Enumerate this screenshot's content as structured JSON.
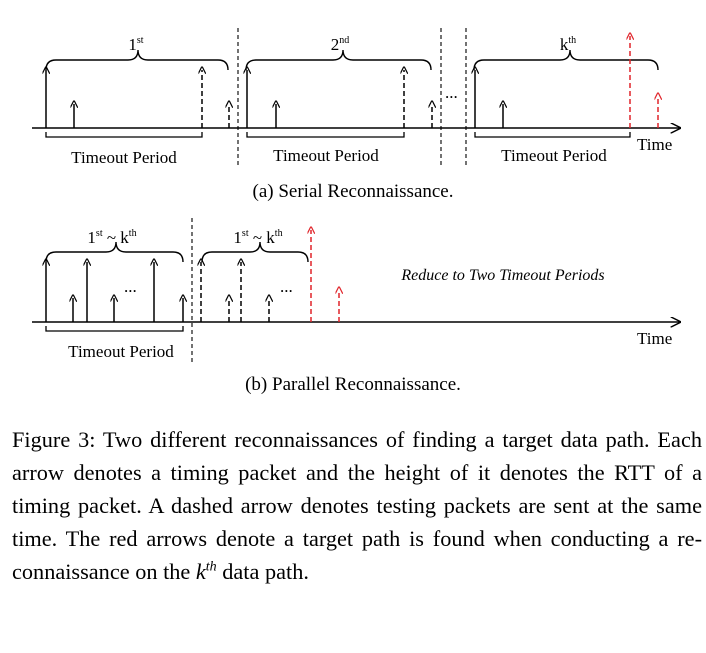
{
  "panel_a": {
    "brace_labels": [
      {
        "base": "1",
        "sup": "st"
      },
      {
        "base": "2",
        "sup": "nd"
      },
      {
        "base": "k",
        "sup": "th"
      }
    ],
    "ellipsis": "...",
    "period_labels": [
      "Timeout Period",
      "Timeout Period",
      "Timeout Period"
    ],
    "axis_label": "Time",
    "subtitle": "(a) Serial Reconnaissance."
  },
  "panel_b": {
    "brace_labels": [
      {
        "base1": "1",
        "sup1": "st",
        "tilde": "~",
        "base2": "k",
        "sup2": "th"
      },
      {
        "base1": "1",
        "sup1": "st",
        "tilde": "~",
        "base2": "k",
        "sup2": "th"
      }
    ],
    "ellipsis": "...",
    "note": "Reduce to Two Timeout Periods",
    "period_label": "Timeout Period",
    "axis_label": "Time",
    "subtitle": "(b) Parallel Reconnaissance."
  },
  "caption": {
    "part1": "Figure 3: Two different reconnaissances of finding a target data path. Each arrow denotes a timing packet and the height of it denotes the RTT of a timing packet.  A dashed arrow denotes testing packets are sent at the same time.  The red arrows denote a target path is found when conducting a re-connaissance on the ",
    "k": "k",
    "th": "th",
    "part2": " data path."
  },
  "colors": {
    "ink": "#000000",
    "target_arrow": "#e0242a"
  }
}
